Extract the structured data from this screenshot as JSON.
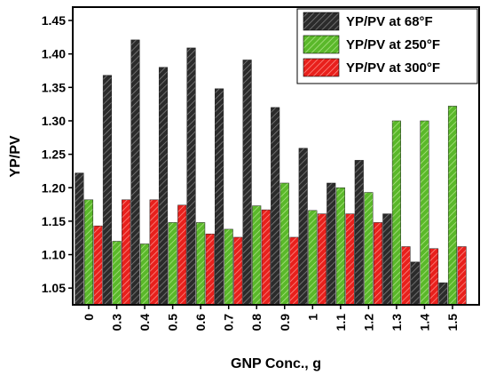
{
  "chart_data": {
    "type": "bar",
    "title": "",
    "xlabel": "GNP Conc., g",
    "ylabel": "YP/PV",
    "categories": [
      "0",
      "0.3",
      "0.4",
      "0.5",
      "0.6",
      "0.7",
      "0.8",
      "0.9",
      "1",
      "1.1",
      "1.2",
      "1.3",
      "1.4",
      "1.5"
    ],
    "series": [
      {
        "name": "YP/PV at 68°F",
        "color": "#2b2b2b",
        "values": [
          1.222,
          1.368,
          1.421,
          1.38,
          1.409,
          1.348,
          1.391,
          1.32,
          1.259,
          1.207,
          1.241,
          1.161,
          1.089,
          1.058
        ]
      },
      {
        "name": "YP/PV at 250°F",
        "color": "#5ab82a",
        "values": [
          1.182,
          1.12,
          1.116,
          1.148,
          1.148,
          1.138,
          1.173,
          1.207,
          1.166,
          1.2,
          1.193,
          1.3,
          1.3,
          1.322
        ]
      },
      {
        "name": "YP/PV at 300°F",
        "color": "#e8201c",
        "values": [
          1.143,
          1.182,
          1.182,
          1.174,
          1.131,
          1.126,
          1.167,
          1.126,
          1.161,
          1.161,
          1.148,
          1.112,
          1.109,
          1.112
        ]
      }
    ],
    "ylim": [
      1.025,
      1.47
    ],
    "yticks": [
      "1.05",
      "1.10",
      "1.15",
      "1.20",
      "1.25",
      "1.30",
      "1.35",
      "1.40",
      "1.45"
    ],
    "grid": false,
    "legend_position": "top-right",
    "bar_pattern": "diagonal-hatch"
  }
}
